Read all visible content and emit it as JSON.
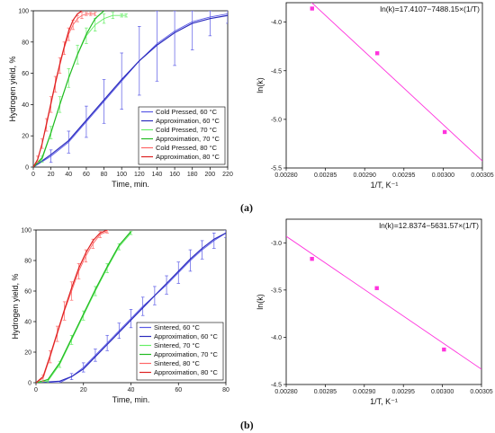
{
  "panel_labels": [
    "(a)",
    "(b)"
  ],
  "colors": {
    "blue": "#2b2bbd",
    "green": "#22bb22",
    "red": "#dd2222",
    "magenta": "#ff33dd",
    "blue_light": "#5a5ae6",
    "green_light": "#66ee66",
    "red_light": "#ff6666"
  },
  "chart_data": [
    {
      "type": "line",
      "xlabel": "Time, min.",
      "ylabel": "Hydrogen yield, %",
      "xlim": [
        0,
        220
      ],
      "ylim": [
        0,
        100
      ],
      "xticks": [
        0,
        20,
        40,
        60,
        80,
        100,
        120,
        140,
        160,
        180,
        200,
        220
      ],
      "yticks": [
        0,
        20,
        40,
        60,
        80,
        100
      ],
      "legend_position": "bottom-right",
      "series": [
        {
          "name": "Cold Pressed, 60 °C",
          "color": "blue_light",
          "kind": "data",
          "x": [
            0,
            20,
            40,
            60,
            80,
            100,
            120,
            140,
            160,
            180,
            200,
            220
          ],
          "y": [
            0,
            7,
            16,
            29,
            42,
            55,
            68,
            79,
            87,
            93,
            96,
            98
          ],
          "err": [
            0,
            4,
            7,
            10,
            14,
            18,
            22,
            24,
            22,
            18,
            12,
            6
          ]
        },
        {
          "name": "Approximation, 60 °C",
          "color": "blue",
          "kind": "fit",
          "x": [
            0,
            20,
            40,
            60,
            80,
            100,
            120,
            140,
            160,
            180,
            200,
            220
          ],
          "y": [
            0,
            8,
            17,
            30,
            43,
            56,
            68,
            78,
            86,
            92,
            95,
            97
          ]
        },
        {
          "name": "Cold Pressed, 70 °C",
          "color": "green_light",
          "kind": "data",
          "x": [
            0,
            10,
            20,
            30,
            40,
            50,
            60,
            70,
            80,
            90,
            100,
            105
          ],
          "y": [
            0,
            5,
            22,
            40,
            57,
            72,
            84,
            91,
            95,
            97,
            97,
            97
          ],
          "err": [
            0,
            2,
            4,
            5,
            6,
            6,
            5,
            4,
            3,
            2,
            1,
            1
          ]
        },
        {
          "name": "Approximation, 70 °C",
          "color": "green",
          "kind": "fit",
          "x": [
            0,
            10,
            20,
            30,
            40,
            50,
            60,
            70,
            80
          ],
          "y": [
            0,
            6,
            22,
            40,
            57,
            72,
            85,
            95,
            100
          ]
        },
        {
          "name": "Cold Pressed, 80 °C",
          "color": "red_light",
          "kind": "data",
          "x": [
            0,
            5,
            10,
            15,
            20,
            25,
            30,
            35,
            40,
            45,
            50,
            55,
            60,
            65,
            70
          ],
          "y": [
            0,
            5,
            15,
            27,
            40,
            53,
            65,
            76,
            85,
            91,
            95,
            97,
            98,
            98,
            98
          ],
          "err": [
            0,
            2,
            3,
            4,
            5,
            5,
            5,
            4,
            4,
            3,
            2,
            2,
            1,
            1,
            1
          ]
        },
        {
          "name": "Approximation, 80 °C",
          "color": "red",
          "kind": "fit",
          "x": [
            0,
            5,
            10,
            15,
            20,
            25,
            30,
            35,
            40,
            45,
            50,
            55
          ],
          "y": [
            0,
            5,
            15,
            28,
            41,
            54,
            66,
            77,
            87,
            94,
            98,
            100
          ]
        }
      ]
    },
    {
      "type": "scatter",
      "xlabel": "1/T, K⁻¹",
      "ylabel": "ln(k)",
      "xlim": [
        0.0028,
        0.00305
      ],
      "ylim": [
        -5.5,
        -3.8
      ],
      "xticks": [
        "0.00280",
        "0.00285",
        "0.00290",
        "0.00295",
        "0.00300",
        "0.00305"
      ],
      "xtick_values": [
        0.0028,
        0.00285,
        0.0029,
        0.00295,
        0.003,
        0.00305
      ],
      "yticks": [
        "-5.5",
        "-5.0",
        "-4.5",
        "-4.0"
      ],
      "ytick_values": [
        -5.5,
        -5.0,
        -4.5,
        -4.0
      ],
      "equation": "ln(k)=17.4107−7488.15×(1/T)",
      "points": {
        "x": [
          0.002833,
          0.002916,
          0.003002
        ],
        "y": [
          -3.86,
          -4.32,
          -5.13
        ]
      },
      "fit": {
        "intercept": 17.4107,
        "slope": -7488.15,
        "x": [
          0.0028,
          0.00305
        ]
      }
    },
    {
      "type": "line",
      "xlabel": "Time, min.",
      "ylabel": "Hydrogen yield, %",
      "xlim": [
        0,
        80
      ],
      "ylim": [
        0,
        100
      ],
      "xticks": [
        0,
        20,
        40,
        60,
        80
      ],
      "yticks": [
        0,
        20,
        40,
        60,
        80,
        100
      ],
      "legend_position": "bottom-right",
      "series": [
        {
          "name": "Sintered, 60 °C",
          "color": "blue_light",
          "kind": "data",
          "x": [
            0,
            10,
            15,
            20,
            25,
            30,
            35,
            40,
            45,
            50,
            55,
            60,
            65,
            70,
            75,
            80
          ],
          "y": [
            0,
            0,
            4,
            10,
            18,
            26,
            34,
            42,
            50,
            57,
            64,
            72,
            80,
            87,
            93,
            98
          ],
          "err": [
            0,
            1,
            2,
            3,
            4,
            5,
            5,
            6,
            6,
            6,
            6,
            7,
            7,
            6,
            5,
            3
          ]
        },
        {
          "name": "Approximation, 60 °C",
          "color": "blue",
          "kind": "fit",
          "x": [
            0,
            10,
            15,
            20,
            25,
            30,
            35,
            40,
            45,
            50,
            55,
            60,
            65,
            70,
            75,
            80
          ],
          "y": [
            0,
            1,
            4,
            9,
            17,
            25,
            33,
            41,
            49,
            57,
            65,
            73,
            81,
            88,
            94,
            98
          ]
        },
        {
          "name": "Sintered, 70 °C",
          "color": "green_light",
          "kind": "data",
          "x": [
            0,
            5,
            10,
            15,
            20,
            25,
            30,
            35,
            40
          ],
          "y": [
            0,
            1,
            12,
            28,
            44,
            60,
            75,
            89,
            98
          ],
          "err": [
            0,
            1,
            2,
            3,
            3,
            3,
            3,
            2,
            1
          ]
        },
        {
          "name": "Approximation, 70 °C",
          "color": "green",
          "kind": "fit",
          "x": [
            0,
            5,
            10,
            15,
            20,
            25,
            30,
            35,
            40
          ],
          "y": [
            0,
            2,
            13,
            29,
            45,
            61,
            76,
            90,
            99
          ]
        },
        {
          "name": "Sintered, 80 °C",
          "color": "red_light",
          "kind": "data",
          "x": [
            0,
            3,
            6,
            9,
            12,
            15,
            18,
            21,
            24,
            27,
            30
          ],
          "y": [
            0,
            3,
            17,
            32,
            47,
            60,
            73,
            83,
            91,
            97,
            99
          ],
          "err": [
            0,
            2,
            4,
            5,
            6,
            6,
            5,
            4,
            3,
            2,
            1
          ]
        },
        {
          "name": "Approximation, 80 °C",
          "color": "red",
          "kind": "fit",
          "x": [
            0,
            3,
            6,
            9,
            12,
            15,
            18,
            21,
            24,
            27,
            30
          ],
          "y": [
            0,
            4,
            18,
            33,
            48,
            62,
            75,
            85,
            93,
            98,
            100
          ]
        }
      ]
    },
    {
      "type": "scatter",
      "xlabel": "1/T, K⁻¹",
      "ylabel": "ln(k)",
      "xlim": [
        0.0028,
        0.00305
      ],
      "ylim": [
        -4.5,
        -2.75
      ],
      "xticks": [
        "0.00280",
        "0.00285",
        "0.00290",
        "0.00295",
        "0.00300",
        "0.00305"
      ],
      "xtick_values": [
        0.0028,
        0.00285,
        0.0029,
        0.00295,
        0.003,
        0.00305
      ],
      "yticks": [
        "-4.5",
        "-4.0",
        "-3.5",
        "-3.0"
      ],
      "ytick_values": [
        -4.5,
        -4.0,
        -3.5,
        -3.0
      ],
      "equation": "ln(k)=12.8374−5631.57×(1/T)",
      "points": {
        "x": [
          0.002833,
          0.002916,
          0.003002
        ],
        "y": [
          -3.17,
          -3.48,
          -4.13
        ]
      },
      "fit": {
        "intercept": 12.8374,
        "slope": -5631.57,
        "x": [
          0.0028,
          0.00305
        ]
      }
    }
  ]
}
